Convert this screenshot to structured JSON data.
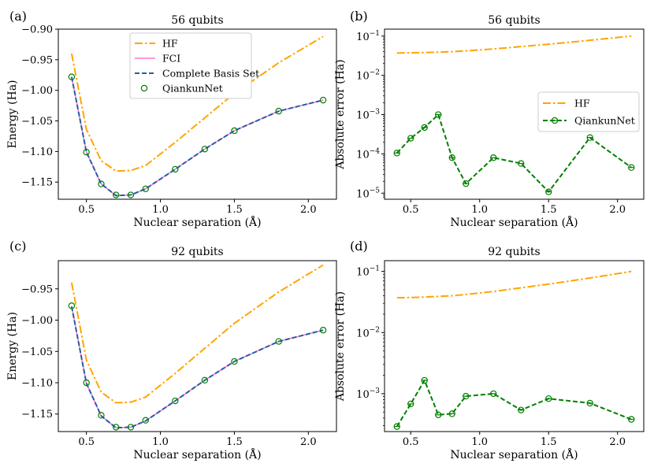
{
  "colors": {
    "hf": "#ffa500",
    "fci": "#ff77c8",
    "cbs": "#1f5fa8",
    "qk": "#008000",
    "frame": "#000000"
  },
  "chart_data": [
    {
      "type": "line",
      "panel_label": "(a)",
      "title": "56 qubits",
      "xlabel": "Nuclear separation (Å)",
      "ylabel": "Energy (Ha)",
      "xlim": [
        0.31,
        2.19
      ],
      "ylim": [
        -1.178,
        -0.9
      ],
      "xticks": [
        0.5,
        1.0,
        1.5,
        2.0
      ],
      "xtick_labels": [
        "0.5",
        "1.0",
        "1.5",
        "2.0"
      ],
      "yticks": [
        -0.9,
        -0.95,
        -1.0,
        -1.05,
        -1.1,
        -1.15
      ],
      "ytick_labels": [
        "−0.90",
        "−0.95",
        "−1.00",
        "−1.05",
        "−1.10",
        "−1.15"
      ],
      "legend_position": "top-center",
      "series": [
        {
          "name": "HF",
          "style": "dashdot",
          "color": "#ffa500",
          "x": [
            0.4,
            0.5,
            0.6,
            0.7,
            0.8,
            0.9,
            1.1,
            1.3,
            1.5,
            1.8,
            2.1
          ],
          "y": [
            -0.94,
            -1.064,
            -1.115,
            -1.132,
            -1.131,
            -1.123,
            -1.085,
            -1.045,
            -1.005,
            -0.955,
            -0.912
          ]
        },
        {
          "name": "FCI",
          "style": "solid",
          "color": "#ff77c8",
          "x": [
            0.4,
            0.5,
            0.6,
            0.7,
            0.8,
            0.9,
            1.1,
            1.3,
            1.5,
            1.8,
            2.1
          ],
          "y": [
            -0.978,
            -1.101,
            -1.153,
            -1.172,
            -1.171,
            -1.161,
            -1.129,
            -1.096,
            -1.066,
            -1.034,
            -1.016
          ]
        },
        {
          "name": "Complete Basis Set",
          "style": "dashed",
          "color": "#1f5fa8",
          "x": [
            0.4,
            0.5,
            0.6,
            0.7,
            0.8,
            0.9,
            1.1,
            1.3,
            1.5,
            1.8,
            2.1
          ],
          "y": [
            -0.978,
            -1.101,
            -1.153,
            -1.172,
            -1.171,
            -1.161,
            -1.129,
            -1.096,
            -1.066,
            -1.034,
            -1.016
          ]
        },
        {
          "name": "QiankunNet",
          "style": "markers",
          "color": "#008000",
          "x": [
            0.4,
            0.5,
            0.6,
            0.7,
            0.8,
            0.9,
            1.1,
            1.3,
            1.5,
            1.8,
            2.1
          ],
          "y": [
            -0.978,
            -1.101,
            -1.153,
            -1.171,
            -1.171,
            -1.161,
            -1.129,
            -1.096,
            -1.066,
            -1.034,
            -1.016
          ]
        }
      ]
    },
    {
      "type": "line",
      "panel_label": "(b)",
      "title": "56 qubits",
      "xlabel": "Nuclear separation (Å)",
      "ylabel": "Absolute error (Ha)",
      "log_y": true,
      "xlim": [
        0.31,
        2.19
      ],
      "ylim": [
        7e-06,
        0.15
      ],
      "xticks": [
        0.5,
        1.0,
        1.5,
        2.0
      ],
      "xtick_labels": [
        "0.5",
        "1.0",
        "1.5",
        "2.0"
      ],
      "yticks": [
        1e-05,
        0.0001,
        0.001,
        0.01,
        0.1
      ],
      "ytick_labels": [
        {
          "b": "10",
          "e": "−5"
        },
        {
          "b": "10",
          "e": "−4"
        },
        {
          "b": "10",
          "e": "−3"
        },
        {
          "b": "10",
          "e": "−2"
        },
        {
          "b": "10",
          "e": "−1"
        }
      ],
      "legend_position": "center-right",
      "series": [
        {
          "name": "HF",
          "style": "dashdot",
          "color": "#ffa500",
          "x": [
            0.4,
            0.5,
            0.6,
            0.7,
            0.8,
            0.9,
            1.1,
            1.3,
            1.5,
            1.8,
            2.1
          ],
          "y": [
            0.037,
            0.0375,
            0.038,
            0.039,
            0.04,
            0.042,
            0.047,
            0.054,
            0.062,
            0.078,
            0.1
          ]
        },
        {
          "name": "QiankunNet",
          "style": "dashed-markers",
          "color": "#008000",
          "x": [
            0.4,
            0.5,
            0.6,
            0.7,
            0.8,
            0.9,
            1.1,
            1.3,
            1.5,
            1.8,
            2.1
          ],
          "y": [
            0.000105,
            0.00025,
            0.00047,
            0.001,
            8e-05,
            1.75e-05,
            8e-05,
            5.7e-05,
            1.08e-05,
            0.00026,
            4.5e-05
          ]
        }
      ]
    },
    {
      "type": "line",
      "panel_label": "(c)",
      "title": "92 qubits",
      "xlabel": "Nuclear separation (Å)",
      "ylabel": "Energy (Ha)",
      "xlim": [
        0.31,
        2.19
      ],
      "ylim": [
        -1.178,
        -0.905
      ],
      "xticks": [
        0.5,
        1.0,
        1.5,
        2.0
      ],
      "xtick_labels": [
        "0.5",
        "1.0",
        "1.5",
        "2.0"
      ],
      "yticks": [
        -0.95,
        -1.0,
        -1.05,
        -1.1,
        -1.15
      ],
      "ytick_labels": [
        "−0.95",
        "−1.00",
        "−1.05",
        "−1.10",
        "−1.15"
      ],
      "series": [
        {
          "name": "HF",
          "style": "dashdot",
          "color": "#ffa500",
          "x": [
            0.4,
            0.5,
            0.6,
            0.7,
            0.8,
            0.9,
            1.1,
            1.3,
            1.5,
            1.8,
            2.1
          ],
          "y": [
            -0.94,
            -1.064,
            -1.115,
            -1.132,
            -1.131,
            -1.123,
            -1.085,
            -1.045,
            -1.005,
            -0.955,
            -0.912
          ]
        },
        {
          "name": "FCI",
          "style": "solid",
          "color": "#ff77c8",
          "x": [
            0.4,
            0.5,
            0.6,
            0.7,
            0.8,
            0.9,
            1.1,
            1.3,
            1.5,
            1.8,
            2.1
          ],
          "y": [
            -0.978,
            -1.101,
            -1.153,
            -1.172,
            -1.171,
            -1.161,
            -1.129,
            -1.096,
            -1.066,
            -1.034,
            -1.016
          ]
        },
        {
          "name": "Complete Basis Set",
          "style": "dashed",
          "color": "#1f5fa8",
          "x": [
            0.4,
            0.5,
            0.6,
            0.7,
            0.8,
            0.9,
            1.1,
            1.3,
            1.5,
            1.8,
            2.1
          ],
          "y": [
            -0.978,
            -1.101,
            -1.153,
            -1.172,
            -1.171,
            -1.161,
            -1.129,
            -1.096,
            -1.066,
            -1.034,
            -1.016
          ]
        },
        {
          "name": "QiankunNet",
          "style": "markers",
          "color": "#008000",
          "x": [
            0.4,
            0.5,
            0.6,
            0.7,
            0.8,
            0.9,
            1.1,
            1.3,
            1.5,
            1.8,
            2.1
          ],
          "y": [
            -0.977,
            -1.1,
            -1.152,
            -1.171,
            -1.171,
            -1.16,
            -1.129,
            -1.096,
            -1.066,
            -1.034,
            -1.016
          ]
        }
      ]
    },
    {
      "type": "line",
      "panel_label": "(d)",
      "title": "92 qubits",
      "xlabel": "Nuclear separation (Å)",
      "ylabel": "Absolute error (Ha)",
      "log_y": true,
      "xlim": [
        0.31,
        2.19
      ],
      "ylim": [
        0.00024,
        0.15
      ],
      "xticks": [
        0.5,
        1.0,
        1.5,
        2.0
      ],
      "xtick_labels": [
        "0.5",
        "1.0",
        "1.5",
        "2.0"
      ],
      "yticks": [
        0.001,
        0.01,
        0.1
      ],
      "ytick_labels": [
        {
          "b": "10",
          "e": "−3"
        },
        {
          "b": "10",
          "e": "−2"
        },
        {
          "b": "10",
          "e": "−1"
        }
      ],
      "series": [
        {
          "name": "HF",
          "style": "dashdot",
          "color": "#ffa500",
          "x": [
            0.4,
            0.5,
            0.6,
            0.7,
            0.8,
            0.9,
            1.1,
            1.3,
            1.5,
            1.8,
            2.1
          ],
          "y": [
            0.037,
            0.0375,
            0.038,
            0.039,
            0.04,
            0.042,
            0.047,
            0.054,
            0.062,
            0.078,
            0.1
          ]
        },
        {
          "name": "QiankunNet",
          "style": "dashed-markers",
          "color": "#008000",
          "x": [
            0.4,
            0.5,
            0.6,
            0.7,
            0.8,
            0.9,
            1.1,
            1.3,
            1.5,
            1.8,
            2.1
          ],
          "y": [
            0.00029,
            0.00068,
            0.00165,
            0.00045,
            0.00047,
            0.00091,
            0.001,
            0.00054,
            0.00083,
            0.0007,
            0.00038
          ]
        }
      ]
    }
  ]
}
